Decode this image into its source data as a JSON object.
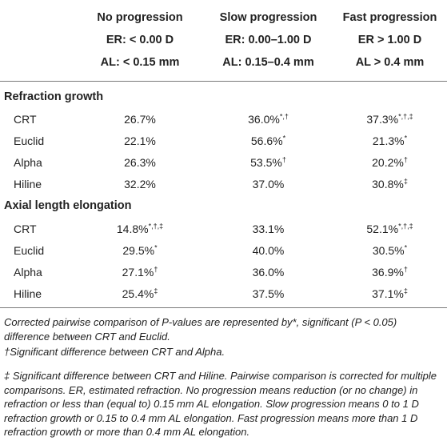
{
  "columns": [
    {
      "title": "No progression",
      "er": "ER: < 0.00 D",
      "al": "AL: < 0.15 mm"
    },
    {
      "title": "Slow progression",
      "er": "ER: 0.00–1.00 D",
      "al": "AL: 0.15–0.4 mm"
    },
    {
      "title": "Fast progression",
      "er": "ER > 1.00 D",
      "al": "AL > 0.4 mm"
    }
  ],
  "sections": [
    {
      "title": "Refraction growth",
      "rows": [
        {
          "label": "CRT",
          "cells": [
            {
              "v": "26.7%",
              "s": ""
            },
            {
              "v": "36.0%",
              "s": "*,†"
            },
            {
              "v": "37.3%",
              "s": "*,†,‡"
            }
          ]
        },
        {
          "label": "Euclid",
          "cells": [
            {
              "v": "22.1%",
              "s": ""
            },
            {
              "v": "56.6%",
              "s": "*"
            },
            {
              "v": "21.3%",
              "s": "*"
            }
          ]
        },
        {
          "label": "Alpha",
          "cells": [
            {
              "v": "26.3%",
              "s": ""
            },
            {
              "v": "53.5%",
              "s": "†"
            },
            {
              "v": "20.2%",
              "s": "†"
            }
          ]
        },
        {
          "label": "Hiline",
          "cells": [
            {
              "v": "32.2%",
              "s": ""
            },
            {
              "v": "37.0%",
              "s": ""
            },
            {
              "v": "30.8%",
              "s": "‡"
            }
          ]
        }
      ]
    },
    {
      "title": "Axial length elongation",
      "rows": [
        {
          "label": "CRT",
          "cells": [
            {
              "v": "14.8%",
              "s": "*,†,‡"
            },
            {
              "v": "33.1%",
              "s": ""
            },
            {
              "v": "52.1%",
              "s": "*,†,‡"
            }
          ]
        },
        {
          "label": "Euclid",
          "cells": [
            {
              "v": "29.5%",
              "s": "*"
            },
            {
              "v": "40.0%",
              "s": ""
            },
            {
              "v": "30.5%",
              "s": "*"
            }
          ]
        },
        {
          "label": "Alpha",
          "cells": [
            {
              "v": "27.1%",
              "s": "†"
            },
            {
              "v": "36.0%",
              "s": ""
            },
            {
              "v": "36.9%",
              "s": "†"
            }
          ]
        },
        {
          "label": "Hiline",
          "cells": [
            {
              "v": "25.4%",
              "s": "‡"
            },
            {
              "v": "37.5%",
              "s": ""
            },
            {
              "v": "37.1%",
              "s": "‡"
            }
          ]
        }
      ]
    }
  ],
  "footnotes": {
    "fn1": "Corrected pairwise comparison of P-values are represented by*, significant (P < 0.05) difference between CRT and Euclid.",
    "fn2": "†Significant difference between CRT and Alpha.",
    "fn3": "‡ Significant difference between CRT and Hiline. Pairwise comparison is corrected for multiple comparisons. ER, estimated refraction. No progression means reduction (or no change) in refraction or less than (equal to) 0.15 mm AL elongation. Slow progression means 0 to 1 D refraction growth or 0.15 to 0.4 mm AL elongation. Fast progression means more than 1 D refraction growth or more than 0.4 mm AL elongation."
  }
}
